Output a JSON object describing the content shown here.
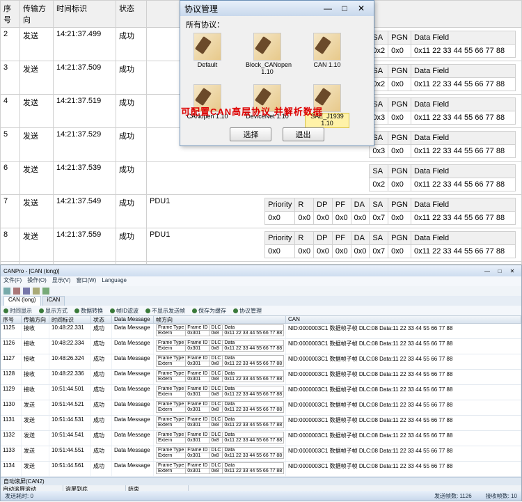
{
  "top": {
    "columns": [
      "序号",
      "传输方向",
      "时间标识",
      "状态"
    ],
    "pdu_label": "PDU1",
    "rows": [
      {
        "idx": "2",
        "dir": "发送",
        "ts": "14:21:37.499",
        "st": "成功"
      },
      {
        "idx": "3",
        "dir": "发送",
        "ts": "14:21:37.509",
        "st": "成功"
      },
      {
        "idx": "4",
        "dir": "发送",
        "ts": "14:21:37.519",
        "st": "成功"
      },
      {
        "idx": "5",
        "dir": "发送",
        "ts": "14:21:37.529",
        "st": "成功"
      },
      {
        "idx": "6",
        "dir": "发送",
        "ts": "14:21:37.539",
        "st": "成功"
      },
      {
        "idx": "7",
        "dir": "发送",
        "ts": "14:21:37.549",
        "st": "成功"
      },
      {
        "idx": "8",
        "dir": "发送",
        "ts": "14:21:37.559",
        "st": "成功"
      },
      {
        "idx": "9",
        "dir": "发送",
        "ts": "14:21:37.569",
        "st": "成功"
      }
    ],
    "mini_header": [
      "Priority",
      "R",
      "DP",
      "PF",
      "DA",
      "SA",
      "PGN",
      "Data Field"
    ],
    "mini_full": [
      "0x0",
      "0x0",
      "0x0",
      "0x0",
      "0x0",
      "0x7",
      "0x0",
      "0x11 22 33 44 55 66 77 88"
    ],
    "mini_short": [
      "0x2",
      "0x0",
      "0x11 22 33 44 55 66 77 88"
    ],
    "mini_short2": [
      "0x3",
      "0x0",
      "0x11 22 33 44 55 66 77 88"
    ],
    "red_note": "可配置CAN高层协议 并解析数据"
  },
  "modal": {
    "title": "协议管理",
    "all_label": "所有协议：",
    "protocols": [
      {
        "name": "Default"
      },
      {
        "name": "Block_CANopen 1.10"
      },
      {
        "name": "CAN 1.10"
      },
      {
        "name": "CANopen 1.10"
      },
      {
        "name": "DeviceNet 1.10"
      },
      {
        "name": "SAE_J1939 1.10",
        "selected": true
      }
    ],
    "btn_select": "选择",
    "btn_exit": "退出"
  },
  "bottom": {
    "app_title": "CANPro - [CAN (long)]",
    "menu": [
      "文件(F)",
      "操作(O)",
      "显示(V)",
      "窗口(W)",
      "Language"
    ],
    "tabs": [
      "CAN (long)",
      "iCAN"
    ],
    "tool2": [
      "时间显示",
      "显示方式",
      "数据转换",
      "帧ID滤波",
      "不显示发送帧",
      "保存为缓存",
      "协议管理"
    ],
    "head": {
      "id": "序号",
      "dir": "传输方向",
      "ts": "时间标识",
      "st": "状态",
      "dm": "Data Message",
      "frame": "帧方向",
      "can": "CAN"
    },
    "sub_hdr": [
      "Frame Type",
      "Frame ID",
      "DLC",
      "Data"
    ],
    "sub_val": [
      "Extern",
      "0x301",
      "0x8",
      "0x11 22 33 44 55 66 77 88"
    ],
    "can_text": "NID:0000003C1 数据帧子帧 DLC:08 Data:11 22 33 44 55 66 77 88",
    "rows": [
      {
        "id": "1125",
        "dir": "接收",
        "ts": "10:48:22.331",
        "st": "成功"
      },
      {
        "id": "1126",
        "dir": "接收",
        "ts": "10:48:22.334",
        "st": "成功"
      },
      {
        "id": "1127",
        "dir": "接收",
        "ts": "10:48:26.324",
        "st": "成功"
      },
      {
        "id": "1128",
        "dir": "接收",
        "ts": "10:48:22.336",
        "st": "成功"
      },
      {
        "id": "1129",
        "dir": "接收",
        "ts": "10:51:44.501",
        "st": "成功"
      },
      {
        "id": "1130",
        "dir": "发送",
        "ts": "10:51:44.521",
        "st": "成功"
      },
      {
        "id": "1131",
        "dir": "发送",
        "ts": "10:51:44.531",
        "st": "成功"
      },
      {
        "id": "1132",
        "dir": "发送",
        "ts": "10:51:44.541",
        "st": "成功"
      },
      {
        "id": "1133",
        "dir": "发送",
        "ts": "10:51:44.551",
        "st": "成功"
      },
      {
        "id": "1134",
        "dir": "发送",
        "ts": "10:51:44.561",
        "st": "成功"
      },
      {
        "id": "1135",
        "dir": "发送",
        "ts": "10:51:44.571",
        "st": "成功"
      },
      {
        "id": "1136",
        "dir": "发送",
        "ts": "10:51:44.671",
        "st": "成功"
      }
    ],
    "foot1": "自动滚屏(CAN2)",
    "foot2": [
      "自动滚屏滚动",
      "滚屏到底",
      "结束"
    ],
    "status": {
      "left": "发送耗时: 0",
      "mid": "发送帧数: 1126",
      "right": "接收帧数: 10"
    }
  }
}
